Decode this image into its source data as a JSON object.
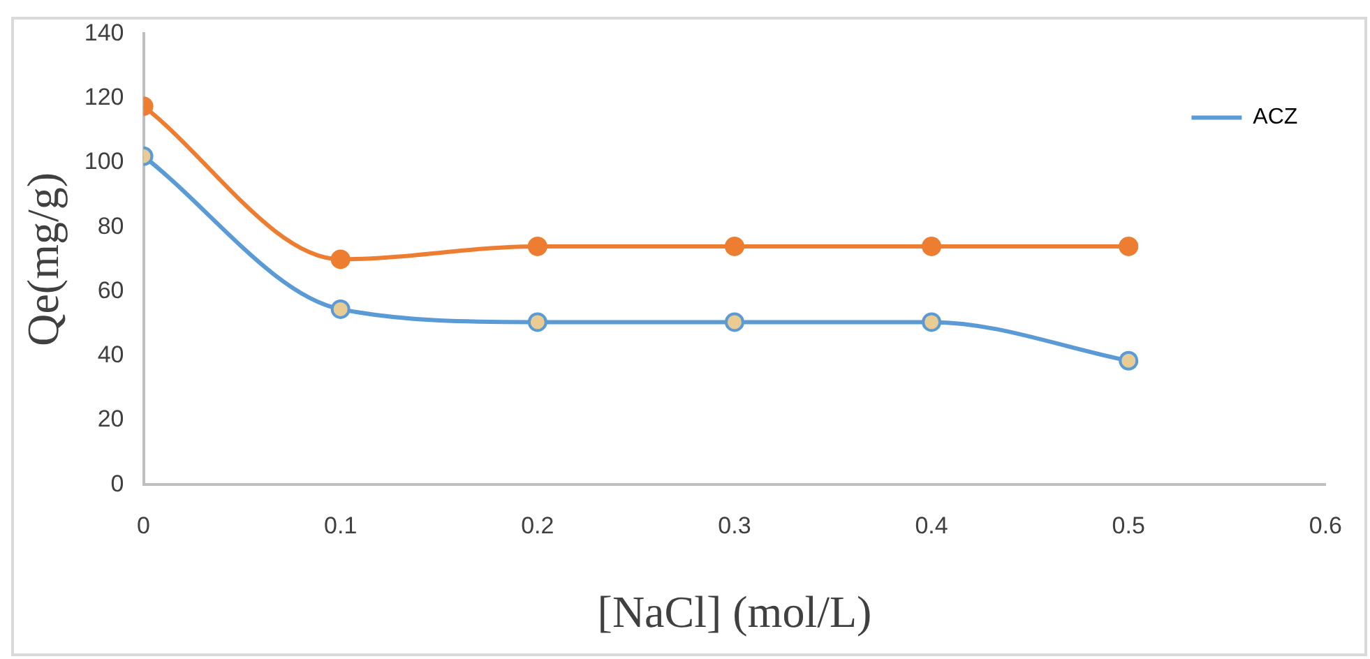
{
  "chart_data": {
    "type": "line",
    "xlabel": "[NaCl] (mol/L)",
    "ylabel": "Qe(mg/g)",
    "x": [
      0,
      0.1,
      0.2,
      0.3,
      0.4,
      0.5
    ],
    "series": [
      {
        "name": "ACZ",
        "color": "#5b9bd5",
        "values": [
          102,
          54.5,
          50.5,
          50.5,
          50.5,
          38.5
        ]
      },
      {
        "color": "#ed7d31",
        "values": [
          117.5,
          70,
          74,
          74,
          74,
          74
        ]
      }
    ],
    "xlim": [
      0,
      0.6
    ],
    "xticks": [
      0,
      0.1,
      0.2,
      0.3,
      0.4,
      0.5,
      0.6
    ],
    "ylim": [
      0,
      140
    ],
    "yticks": [
      0,
      20,
      40,
      60,
      80,
      100,
      120,
      140
    ],
    "grid": false,
    "legend": "top right",
    "marker": "circle",
    "line_style": "solid"
  }
}
